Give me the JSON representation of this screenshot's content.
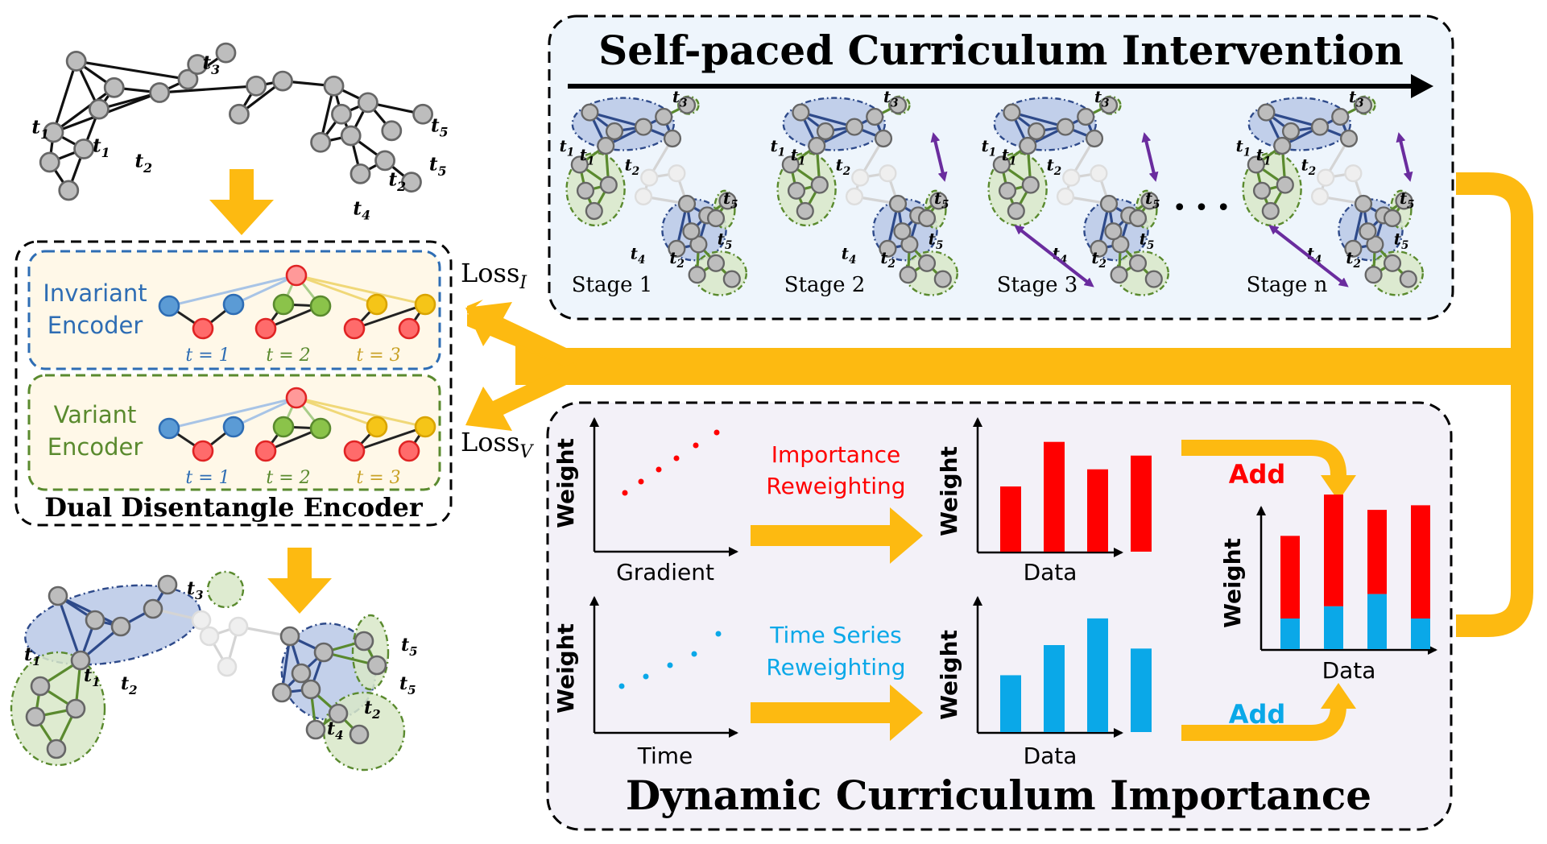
{
  "top_panel": {
    "title": "Self-paced Curriculum Intervention",
    "stages": [
      "Stage 1",
      "Stage 2",
      "Stage 3",
      "Stage n"
    ],
    "ellipsis": "• • •"
  },
  "encoder": {
    "title": "Dual Disentangle Encoder",
    "invariant_label_1": "Invariant",
    "invariant_label_2": "Encoder",
    "variant_label_1": "Variant",
    "variant_label_2": "Encoder",
    "timesteps": [
      "t = 1",
      "t = 2",
      "t = 3"
    ],
    "loss_i_main": "Loss",
    "loss_i_sub": "I",
    "loss_v_main": "Loss",
    "loss_v_sub": "V"
  },
  "bottom_panel": {
    "title": "Dynamic Curriculum Importance",
    "scatter1_x": "Gradient",
    "scatter2_x": "Time",
    "weight": "Weight",
    "data": "Data",
    "importance_1": "Importance",
    "importance_2": "Reweighting",
    "timeseries_1": "Time Series",
    "timeseries_2": "Reweighting",
    "add_red": "Add",
    "add_blue": "Add"
  },
  "graph_labels": {
    "t1": "t",
    "t1s": "1",
    "t2": "t",
    "t2s": "2",
    "t3": "t",
    "t3s": "3",
    "t4": "t",
    "t4s": "4",
    "t5": "t",
    "t5s": "5"
  },
  "colors": {
    "orange": "#FDBA11",
    "red": "#FF0000",
    "blue": "#0AA8E8",
    "purple": "#6A2C9E",
    "node_gray": "#BDBDBD",
    "inv_blue": "#2E6DB4",
    "var_green": "#5A8A2E"
  },
  "charts": {
    "importance_bars": [
      0.57,
      0.96,
      0.72,
      0.84
    ],
    "timeseries_bars": [
      0.49,
      0.75,
      0.98,
      0.72
    ],
    "stacked_red": [
      0.54,
      0.73,
      0.55,
      0.74
    ],
    "stacked_blue": [
      0.2,
      0.28,
      0.36,
      0.2
    ]
  }
}
